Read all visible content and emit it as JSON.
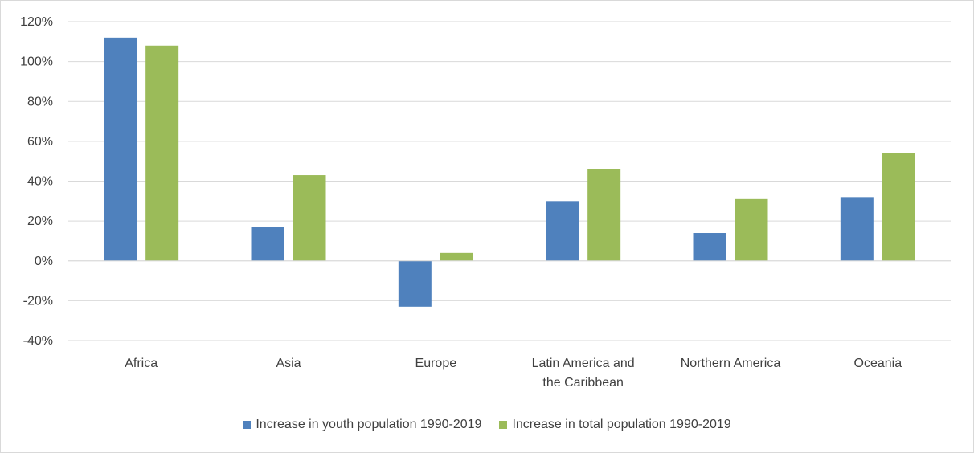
{
  "chart_data": {
    "type": "bar",
    "categories": [
      "Africa",
      "Asia",
      "Europe",
      "Latin America and the Caribbean",
      "Northern America",
      "Oceania"
    ],
    "category_lines": [
      [
        "Africa"
      ],
      [
        "Asia"
      ],
      [
        "Europe"
      ],
      [
        "Latin America and",
        "the Caribbean"
      ],
      [
        "Northern America"
      ],
      [
        "Oceania"
      ]
    ],
    "series": [
      {
        "name": "Increase in youth population 1990-2019",
        "color": "#4f81bd",
        "values": [
          112,
          17,
          -23,
          30,
          14,
          32
        ]
      },
      {
        "name": "Increase in total population 1990-2019",
        "color": "#9bbb59",
        "values": [
          108,
          43,
          4,
          46,
          31,
          54
        ]
      }
    ],
    "ylim": [
      -40,
      120
    ],
    "yticks": [
      -40,
      -20,
      0,
      20,
      40,
      60,
      80,
      100,
      120
    ],
    "ytick_labels": [
      "-40%",
      "-20%",
      "0%",
      "20%",
      "40%",
      "60%",
      "80%",
      "100%",
      "120%"
    ],
    "grid": true,
    "legend_position": "bottom"
  }
}
